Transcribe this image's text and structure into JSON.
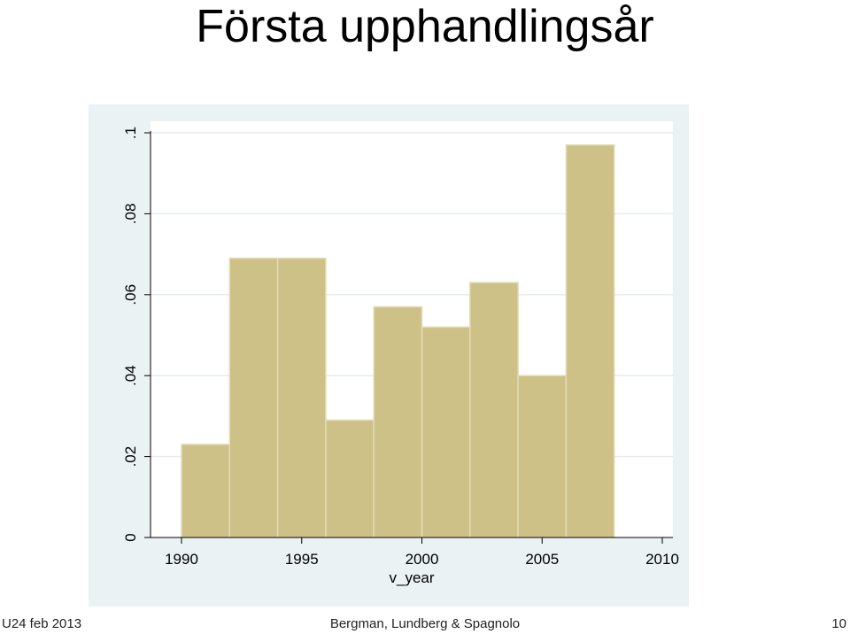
{
  "slide": {
    "title": "Första upphandlingsår",
    "footer_left": "U24 feb 2013",
    "footer_center": "Bergman, Lundberg & Spagnolo",
    "footer_right": "10"
  },
  "colors": {
    "bar_fill": "#cdc188",
    "bar_stroke": "#e2dcb4",
    "plot_bg": "#ffffff",
    "panel_bg": "#eaf2f3",
    "grid": "#e6ecec",
    "axis": "#000000"
  },
  "chart_data": {
    "type": "bar",
    "subtype": "histogram",
    "title": "",
    "xlabel": "v_year",
    "ylabel": "",
    "bin_edges": [
      1990,
      1992,
      1994,
      1996,
      1998,
      2000,
      2002,
      2004,
      2006,
      2008
    ],
    "values": [
      0.023,
      0.069,
      0.069,
      0.029,
      0.057,
      0.052,
      0.063,
      0.04,
      0.097
    ],
    "xlim": [
      1990,
      2010
    ],
    "ylim": [
      0,
      0.1
    ],
    "xticks": [
      1990,
      1995,
      2000,
      2005,
      2010
    ],
    "xtick_labels": [
      "1990",
      "1995",
      "2000",
      "2005",
      "2010"
    ],
    "yticks": [
      0,
      0.02,
      0.04,
      0.06,
      0.08,
      0.1
    ],
    "ytick_labels": [
      "0",
      ".02",
      ".04",
      ".06",
      ".08",
      ".1"
    ],
    "grid": true,
    "legend": "none"
  }
}
